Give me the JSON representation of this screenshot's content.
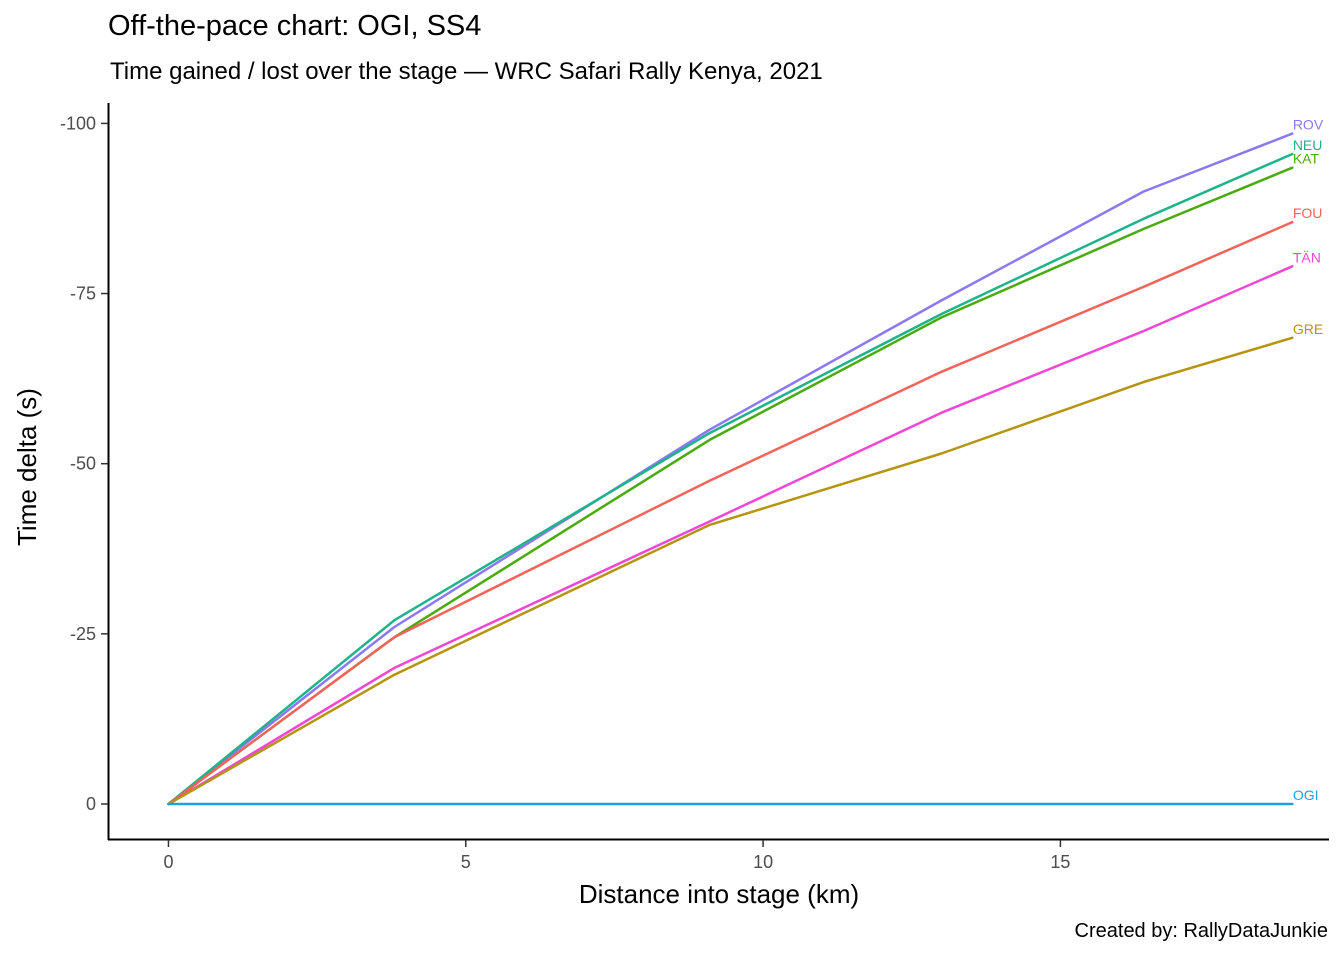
{
  "chart_data": {
    "type": "line",
    "title": "Off-the-pace chart: OGI, SS4",
    "subtitle": "Time gained / lost over the stage — WRC Safari Rally Kenya, 2021",
    "caption": "Created by: RallyDataJunkie",
    "xlabel": "Distance into stage (km)",
    "ylabel": "Time delta (s)",
    "xlim": [
      -1,
      19.5
    ],
    "ylim": [
      5,
      -103
    ],
    "y_reversed": true,
    "xticks": [
      0,
      5,
      10,
      15
    ],
    "xtick_labels": [
      "0",
      "5",
      "10",
      "15"
    ],
    "yticks": [
      0,
      -25,
      -50,
      -75,
      -100
    ],
    "ytick_labels": [
      "0",
      "-25",
      "-50",
      "-75",
      "-100"
    ],
    "grid": false,
    "legend": "direct labels at line ends",
    "x": [
      0,
      3.8,
      9.1,
      13,
      16.4,
      18.9
    ],
    "series": [
      {
        "name": "ROV",
        "color": "#8b78f2",
        "values": [
          0,
          -26,
          -55,
          -74,
          -90,
          -98.5
        ]
      },
      {
        "name": "NEU",
        "color": "#1fb38c",
        "values": [
          0,
          -27,
          -54.5,
          -72,
          -86,
          -95.5
        ]
      },
      {
        "name": "KAT",
        "color": "#4aaa0e",
        "values": [
          0,
          -24.5,
          -53.5,
          -71.5,
          -84.5,
          -93.5
        ]
      },
      {
        "name": "FOU",
        "color": "#f0645a",
        "values": [
          0,
          -24.5,
          -47.5,
          -63.5,
          -76,
          -85.5
        ]
      },
      {
        "name": "TÄN",
        "color": "#f046d5",
        "values": [
          0,
          -20,
          -41.5,
          -57.5,
          -69.5,
          -79
        ]
      },
      {
        "name": "GRE",
        "color": "#b59410",
        "values": [
          0,
          -19,
          -41,
          -51.5,
          -62,
          -68.5
        ]
      },
      {
        "name": "OGI",
        "color": "#1aa3e0",
        "values": [
          0,
          0,
          0,
          0,
          0,
          0
        ]
      }
    ]
  }
}
